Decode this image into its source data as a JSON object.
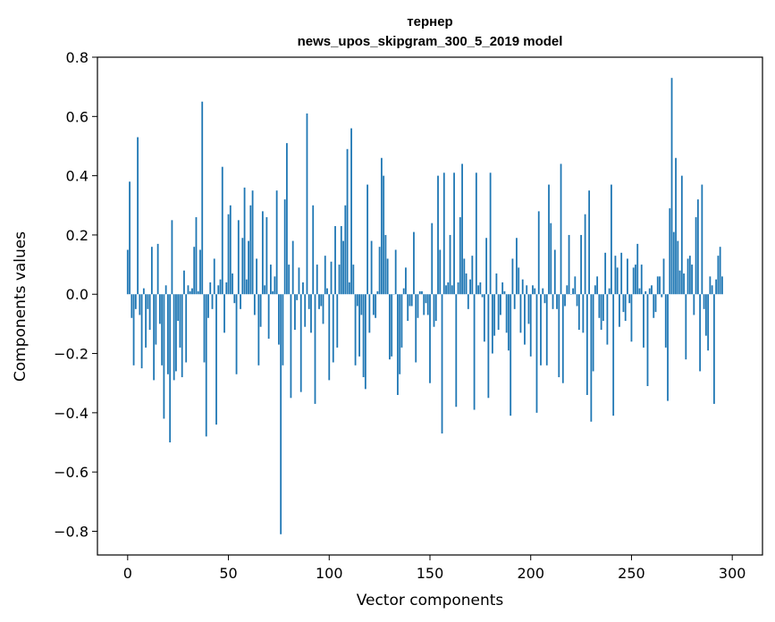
{
  "chart_data": {
    "type": "bar",
    "title": "тернер",
    "subtitle": "news_upos_skipgram_300_5_2019 model",
    "xlabel": "Vector components",
    "ylabel": "Components values",
    "xlim": [
      -15,
      315
    ],
    "ylim": [
      -0.88,
      0.8
    ],
    "xticks": [
      0,
      50,
      100,
      150,
      200,
      250,
      300
    ],
    "yticks": [
      -0.8,
      -0.6,
      -0.4,
      -0.2,
      0.0,
      0.2,
      0.4,
      0.6,
      0.8
    ],
    "xtick_labels": [
      "0",
      "50",
      "100",
      "150",
      "200",
      "250",
      "300"
    ],
    "ytick_labels": [
      "−0.8",
      "−0.6",
      "−0.4",
      "−0.2",
      "0.0",
      "0.2",
      "0.4",
      "0.6",
      "0.8"
    ],
    "grid": false,
    "bar_color": "#1f77b4",
    "x_start": 0,
    "values": [
      0.15,
      0.38,
      -0.08,
      -0.24,
      -0.05,
      0.53,
      -0.07,
      -0.25,
      0.02,
      -0.18,
      -0.05,
      -0.12,
      0.16,
      -0.29,
      -0.17,
      0.17,
      -0.1,
      -0.24,
      -0.42,
      0.03,
      -0.27,
      -0.5,
      0.25,
      -0.29,
      -0.26,
      -0.09,
      -0.18,
      -0.28,
      0.08,
      -0.23,
      0.03,
      0.01,
      0.02,
      0.16,
      0.26,
      0.01,
      0.15,
      0.65,
      -0.23,
      -0.48,
      -0.08,
      0.04,
      -0.05,
      0.12,
      -0.44,
      0.03,
      0.05,
      0.43,
      -0.13,
      0.04,
      0.27,
      0.3,
      0.07,
      -0.03,
      -0.27,
      0.25,
      -0.05,
      0.19,
      0.36,
      0.05,
      0.18,
      0.3,
      0.35,
      -0.07,
      0.12,
      -0.24,
      -0.11,
      0.28,
      0.03,
      0.26,
      -0.15,
      0.1,
      0.01,
      0.06,
      0.35,
      -0.17,
      -0.81,
      -0.24,
      0.32,
      0.51,
      0.1,
      -0.35,
      0.18,
      -0.12,
      -0.02,
      0.09,
      -0.33,
      0.04,
      -0.11,
      0.61,
      -0.05,
      -0.13,
      0.3,
      -0.37,
      0.1,
      -0.05,
      -0.04,
      -0.1,
      0.13,
      0.02,
      -0.29,
      0.11,
      -0.23,
      0.23,
      -0.18,
      0.1,
      0.23,
      0.18,
      0.3,
      0.49,
      0.04,
      0.56,
      0.1,
      -0.24,
      -0.04,
      -0.21,
      -0.07,
      -0.28,
      -0.32,
      0.37,
      -0.13,
      0.18,
      -0.07,
      -0.08,
      0.01,
      0.16,
      0.46,
      0.4,
      0.2,
      0.12,
      -0.22,
      -0.21,
      0.0,
      0.15,
      -0.34,
      -0.27,
      -0.18,
      0.02,
      0.09,
      -0.09,
      -0.04,
      -0.04,
      0.21,
      -0.23,
      -0.08,
      0.01,
      0.01,
      -0.07,
      -0.03,
      -0.07,
      -0.3,
      0.24,
      -0.11,
      -0.09,
      0.4,
      0.15,
      -0.47,
      0.41,
      0.03,
      0.04,
      0.2,
      0.03,
      0.41,
      -0.38,
      0.04,
      0.26,
      0.44,
      0.12,
      0.07,
      -0.05,
      0.05,
      0.13,
      -0.39,
      0.41,
      0.03,
      0.04,
      -0.01,
      -0.16,
      0.19,
      -0.35,
      0.41,
      -0.2,
      -0.14,
      0.07,
      -0.12,
      -0.07,
      0.04,
      0.01,
      -0.13,
      -0.19,
      -0.41,
      0.12,
      -0.05,
      0.19,
      0.09,
      -0.13,
      0.05,
      -0.17,
      0.03,
      -0.1,
      -0.21,
      0.03,
      0.02,
      -0.4,
      0.28,
      -0.24,
      0.02,
      -0.03,
      -0.24,
      0.37,
      0.24,
      -0.05,
      0.15,
      -0.05,
      -0.28,
      0.44,
      -0.3,
      -0.04,
      0.03,
      0.2,
      0.0,
      0.02,
      0.06,
      -0.04,
      -0.12,
      0.2,
      -0.13,
      0.27,
      -0.34,
      0.35,
      -0.43,
      -0.26,
      0.03,
      0.06,
      -0.08,
      -0.12,
      -0.09,
      0.14,
      -0.17,
      0.02,
      0.37,
      -0.41,
      0.13,
      0.09,
      -0.11,
      0.14,
      -0.06,
      -0.09,
      0.12,
      -0.03,
      -0.16,
      0.09,
      0.1,
      0.17,
      0.02,
      0.1,
      -0.18,
      0.01,
      -0.31,
      0.02,
      0.03,
      -0.08,
      -0.06,
      0.06,
      0.06,
      -0.01,
      0.12,
      -0.18,
      -0.36,
      0.29,
      0.73,
      0.21,
      0.46,
      0.18,
      0.08,
      0.4,
      0.07,
      -0.22,
      0.12,
      0.13,
      0.1,
      -0.07,
      0.26,
      0.32,
      -0.26,
      0.37,
      -0.05,
      -0.14,
      -0.19,
      0.06,
      0.03,
      -0.37,
      0.05,
      0.13,
      0.16,
      0.06
    ]
  }
}
